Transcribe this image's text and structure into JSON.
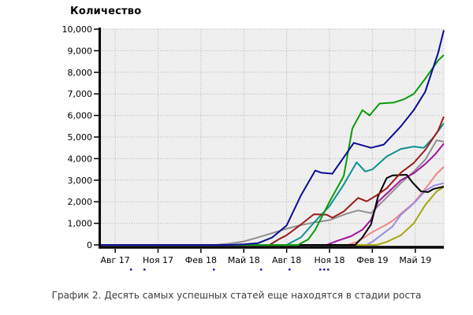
{
  "title": "Количество",
  "caption": "График 2. Десять самых успешных статей еще находятся в стадии роста",
  "chart_data": {
    "type": "line",
    "title": "Количество",
    "xlabel": "",
    "ylabel": "Количество",
    "grid": "dotted",
    "legend_position": "none (cropped off below axis)",
    "plot_bg": "#efefef",
    "grid_color": "#b0b0b0",
    "axis_color": "#000000",
    "x_axis": {
      "min": 0,
      "max": 24,
      "unit": "months, Jul 2017 – Jul 2019",
      "ticks": [
        {
          "m": 1,
          "label": "Авг 17"
        },
        {
          "m": 4,
          "label": "Ноя 17"
        },
        {
          "m": 7,
          "label": "Фев 18"
        },
        {
          "m": 10,
          "label": "Май 18"
        },
        {
          "m": 13,
          "label": "Авг 18"
        },
        {
          "m": 16,
          "label": "Ноя 18"
        },
        {
          "m": 19,
          "label": "Фев 19"
        },
        {
          "m": 22,
          "label": "Май 19"
        }
      ]
    },
    "y_axis": {
      "min": 0,
      "max": 10000,
      "step": 1000,
      "tick_labels": [
        "0",
        "1,000",
        "2,000",
        "3,000",
        "4,000",
        "5,000",
        "6,000",
        "7,000",
        "8,000",
        "9,000",
        "10,000"
      ]
    },
    "series": [
      {
        "id": "salmon",
        "color": "#ee8585",
        "points": [
          [
            0,
            0
          ],
          [
            17.3,
            0
          ],
          [
            18,
            160
          ],
          [
            18.9,
            560
          ],
          [
            20,
            950
          ],
          [
            20.5,
            1160
          ],
          [
            21,
            1450
          ],
          [
            21.9,
            1950
          ],
          [
            22.7,
            2600
          ],
          [
            23.5,
            3300
          ],
          [
            24,
            3620
          ]
        ]
      },
      {
        "id": "light-purple",
        "color": "#9c8ae4",
        "points": [
          [
            0,
            0
          ],
          [
            18.6,
            0
          ],
          [
            19,
            150
          ],
          [
            19.8,
            550
          ],
          [
            20.4,
            850
          ],
          [
            21,
            1400
          ],
          [
            21.6,
            1750
          ],
          [
            22,
            2000
          ],
          [
            22.7,
            2500
          ],
          [
            23.3,
            2750
          ],
          [
            24,
            2860
          ]
        ]
      },
      {
        "id": "olive",
        "color": "#a6a614",
        "points": [
          [
            0,
            0
          ],
          [
            19.3,
            0
          ],
          [
            20,
            140
          ],
          [
            21,
            450
          ],
          [
            21.9,
            1000
          ],
          [
            22.7,
            1850
          ],
          [
            23.5,
            2480
          ],
          [
            24,
            2680
          ]
        ]
      },
      {
        "id": "gray",
        "color": "#8f8f8f",
        "points": [
          [
            0,
            0
          ],
          [
            8,
            0
          ],
          [
            9,
            60
          ],
          [
            10,
            160
          ],
          [
            11,
            350
          ],
          [
            12,
            550
          ],
          [
            13,
            750
          ],
          [
            14,
            920
          ],
          [
            15,
            1050
          ],
          [
            16,
            1150
          ],
          [
            17.2,
            1450
          ],
          [
            18,
            1600
          ],
          [
            18.9,
            1470
          ],
          [
            20,
            2200
          ],
          [
            21,
            2870
          ],
          [
            21.9,
            3400
          ],
          [
            22.7,
            3950
          ],
          [
            23.5,
            4850
          ],
          [
            24,
            4780
          ]
        ]
      },
      {
        "id": "magenta",
        "color": "#a314a3",
        "points": [
          [
            0,
            0
          ],
          [
            15.8,
            0
          ],
          [
            16.5,
            180
          ],
          [
            17.5,
            400
          ],
          [
            18.3,
            700
          ],
          [
            18.9,
            1160
          ],
          [
            19.4,
            2000
          ],
          [
            20.3,
            2560
          ],
          [
            21,
            3000
          ],
          [
            21.9,
            3320
          ],
          [
            22.7,
            3750
          ],
          [
            23.4,
            4200
          ],
          [
            24,
            4700
          ]
        ]
      },
      {
        "id": "black",
        "color": "#000000",
        "points": [
          [
            0,
            0
          ],
          [
            17.8,
            0
          ],
          [
            18.3,
            350
          ],
          [
            18.9,
            950
          ],
          [
            19.4,
            2250
          ],
          [
            20,
            3100
          ],
          [
            20.4,
            3220
          ],
          [
            21.4,
            3250
          ],
          [
            21.8,
            2900
          ],
          [
            22.4,
            2480
          ],
          [
            22.9,
            2450
          ],
          [
            23.3,
            2600
          ],
          [
            24,
            2700
          ]
        ]
      },
      {
        "id": "teal",
        "color": "#0a9191",
        "points": [
          [
            0,
            0
          ],
          [
            13,
            0
          ],
          [
            14,
            350
          ],
          [
            15,
            1100
          ],
          [
            16,
            1800
          ],
          [
            17,
            2800
          ],
          [
            17.9,
            3830
          ],
          [
            18.5,
            3400
          ],
          [
            19,
            3500
          ],
          [
            20,
            4100
          ],
          [
            21,
            4450
          ],
          [
            21.9,
            4560
          ],
          [
            22.6,
            4500
          ],
          [
            23.3,
            5000
          ],
          [
            24,
            5640
          ]
        ]
      },
      {
        "id": "dark-red",
        "color": "#9e1a1a",
        "points": [
          [
            0,
            0
          ],
          [
            11.8,
            0
          ],
          [
            12.5,
            280
          ],
          [
            13,
            450
          ],
          [
            14,
            950
          ],
          [
            14.9,
            1420
          ],
          [
            15.8,
            1400
          ],
          [
            16.2,
            1260
          ],
          [
            17,
            1550
          ],
          [
            18,
            2180
          ],
          [
            18.6,
            2020
          ],
          [
            19.3,
            2300
          ],
          [
            20,
            2620
          ],
          [
            21,
            3350
          ],
          [
            21.9,
            3800
          ],
          [
            22.7,
            4400
          ],
          [
            23.6,
            5300
          ],
          [
            24,
            5950
          ]
        ]
      },
      {
        "id": "green",
        "color": "#0a9a0a",
        "points": [
          [
            0,
            0
          ],
          [
            13.8,
            0
          ],
          [
            14.5,
            250
          ],
          [
            15,
            700
          ],
          [
            16,
            2000
          ],
          [
            17,
            3200
          ],
          [
            17.6,
            5400
          ],
          [
            18.3,
            6250
          ],
          [
            18.8,
            6000
          ],
          [
            19.5,
            6550
          ],
          [
            20.5,
            6600
          ],
          [
            21.2,
            6750
          ],
          [
            21.9,
            7000
          ],
          [
            22.7,
            7700
          ],
          [
            23.6,
            8550
          ],
          [
            24,
            8800
          ]
        ]
      },
      {
        "id": "navy",
        "color": "#0b0b96",
        "points": [
          [
            0,
            0
          ],
          [
            9,
            0
          ],
          [
            10,
            30
          ],
          [
            11,
            80
          ],
          [
            12,
            350
          ],
          [
            13,
            900
          ],
          [
            14,
            2300
          ],
          [
            15,
            3450
          ],
          [
            15.4,
            3350
          ],
          [
            16.2,
            3300
          ],
          [
            17.7,
            4730
          ],
          [
            18.9,
            4500
          ],
          [
            19.8,
            4650
          ],
          [
            21,
            5500
          ],
          [
            21.9,
            6250
          ],
          [
            22.7,
            7100
          ],
          [
            23.6,
            8900
          ],
          [
            24,
            9950
          ]
        ]
      }
    ]
  },
  "truncated_text_marks": {
    "note": "tops of a cropped-off legend text line below the x-axis labels",
    "color": "#2222aa",
    "y": 341,
    "x_positions": [
      165,
      182,
      270,
      330,
      366,
      405,
      410,
      415
    ]
  }
}
